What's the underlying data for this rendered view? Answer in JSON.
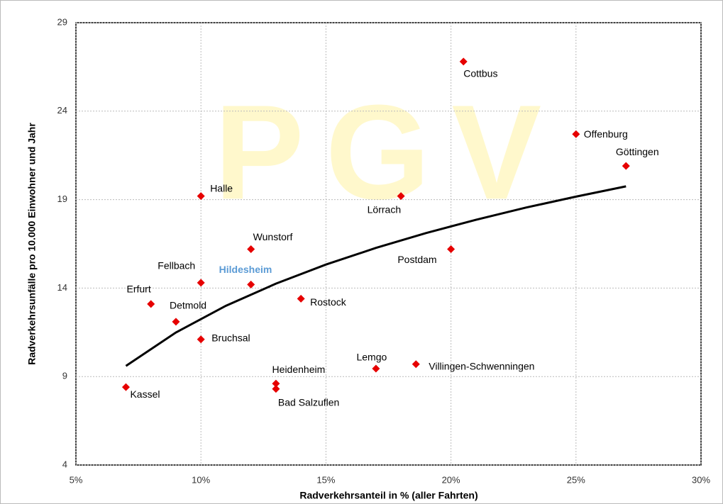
{
  "chart_data": {
    "type": "scatter",
    "watermark": "PGV",
    "x_label": "Radverkehrsanteil in % (aller Fahrten)",
    "y_label": "Radverkehrsunfälle pro 10.000 Einwohner und Jahr",
    "labels": [
      "Cottbus",
      "Offenburg",
      "Göttingen",
      "Halle",
      "Lörrach",
      "Wunstorf",
      "Postdam",
      "Fellbach",
      "Hildesheim",
      "Rostock",
      "Erfurt",
      "Detmold",
      "Bruchsal",
      "Lemgo",
      "Villingen-Schwenningen",
      "Heidenheim",
      "Bad Salzuflen",
      "Kassel"
    ],
    "x": [
      20.5,
      25,
      27,
      10,
      18,
      12,
      20,
      10,
      12,
      14,
      8,
      9,
      10,
      17,
      18.6,
      13,
      13,
      7
    ],
    "values": [
      26.8,
      22.7,
      20.9,
      19.2,
      19.2,
      16.2,
      16.2,
      14.3,
      14.2,
      13.4,
      13.1,
      12.1,
      11.1,
      9.45,
      9.7,
      8.6,
      8.3,
      8.4
    ],
    "color": "#e60000",
    "highlight_color": "#5b9bd5",
    "trendline": {
      "color": "#000000",
      "x": [
        7,
        9,
        11,
        13,
        15,
        17,
        19,
        21,
        23,
        25,
        27
      ],
      "values": [
        9.6,
        11.49,
        13.0,
        14.25,
        15.33,
        16.27,
        17.11,
        17.86,
        18.55,
        19.17,
        19.75
      ]
    },
    "xlim": [
      5,
      30
    ],
    "xticks": [
      {
        "value": 5,
        "label": "5%"
      },
      {
        "value": 10,
        "label": "10%"
      },
      {
        "value": 15,
        "label": "15%"
      },
      {
        "value": 20,
        "label": "20%"
      },
      {
        "value": 25,
        "label": "25%"
      },
      {
        "value": 30,
        "label": "30%"
      }
    ],
    "ylim": [
      4,
      29
    ],
    "yticks": [
      4,
      9,
      14,
      19,
      24,
      29
    ],
    "grid": true
  }
}
